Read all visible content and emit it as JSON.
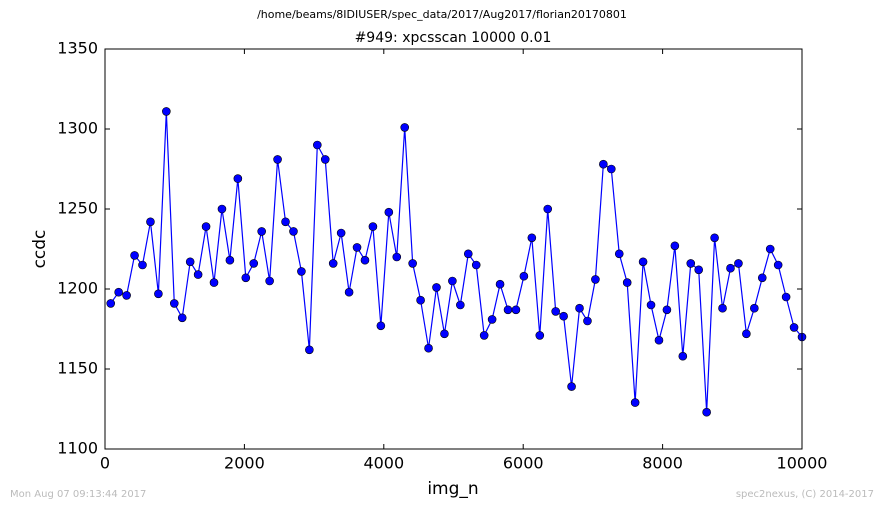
{
  "chart_data": {
    "type": "line",
    "suptitle": "/home/beams/8IDIUSER/spec_data/2017/Aug2017/florian20170801",
    "title": "#949: xpcsscan 10000 0.01",
    "xlabel": "img_n",
    "ylabel": "ccdc",
    "footer_left": "Mon Aug 07 09:13:44 2017",
    "footer_right": "spec2nexus, (C) 2014-2017",
    "xlim": [
      0,
      10000
    ],
    "xticks": [
      0,
      2000,
      4000,
      6000,
      8000,
      10000
    ],
    "ylim": [
      1100,
      1350
    ],
    "yticks": [
      1100,
      1150,
      1200,
      1250,
      1300,
      1350
    ],
    "grid": false,
    "x": [
      82,
      196,
      310,
      424,
      538,
      652,
      766,
      880,
      994,
      1108,
      1222,
      1336,
      1450,
      1564,
      1678,
      1792,
      1906,
      2020,
      2134,
      2248,
      2362,
      2476,
      2590,
      2704,
      2818,
      2932,
      3046,
      3160,
      3274,
      3388,
      3502,
      3616,
      3730,
      3844,
      3958,
      4072,
      4186,
      4300,
      4414,
      4528,
      4642,
      4756,
      4870,
      4984,
      5098,
      5212,
      5326,
      5440,
      5554,
      5668,
      5782,
      5896,
      6010,
      6124,
      6238,
      6352,
      6466,
      6580,
      6694,
      6808,
      6922,
      7036,
      7150,
      7264,
      7378,
      7492,
      7606,
      7720,
      7834,
      7948,
      8062,
      8176,
      8290,
      8404,
      8518,
      8632,
      8746,
      8860,
      8974,
      9088,
      9202,
      9316,
      9430,
      9544,
      9658,
      9772,
      9886,
      10000
    ],
    "series": [
      {
        "color": "#0000ff",
        "values": [
          1191,
          1198,
          1196,
          1221,
          1215,
          1242,
          1197,
          1311,
          1191,
          1182,
          1217,
          1209,
          1239,
          1204,
          1250,
          1218,
          1269,
          1207,
          1216,
          1236,
          1205,
          1281,
          1242,
          1236,
          1211,
          1162,
          1290,
          1281,
          1216,
          1235,
          1198,
          1226,
          1218,
          1239,
          1177,
          1248,
          1220,
          1301,
          1216,
          1193,
          1163,
          1201,
          1172,
          1205,
          1190,
          1222,
          1215,
          1171,
          1181,
          1203,
          1187,
          1187,
          1208,
          1232,
          1171,
          1250,
          1186,
          1183,
          1139,
          1188,
          1180,
          1206,
          1278,
          1275,
          1222,
          1204,
          1129,
          1217,
          1190,
          1168,
          1187,
          1227,
          1158,
          1216,
          1212,
          1123,
          1232,
          1188,
          1213,
          1216,
          1172,
          1188,
          1207,
          1225,
          1215,
          1195,
          1176,
          1170
        ]
      }
    ]
  }
}
